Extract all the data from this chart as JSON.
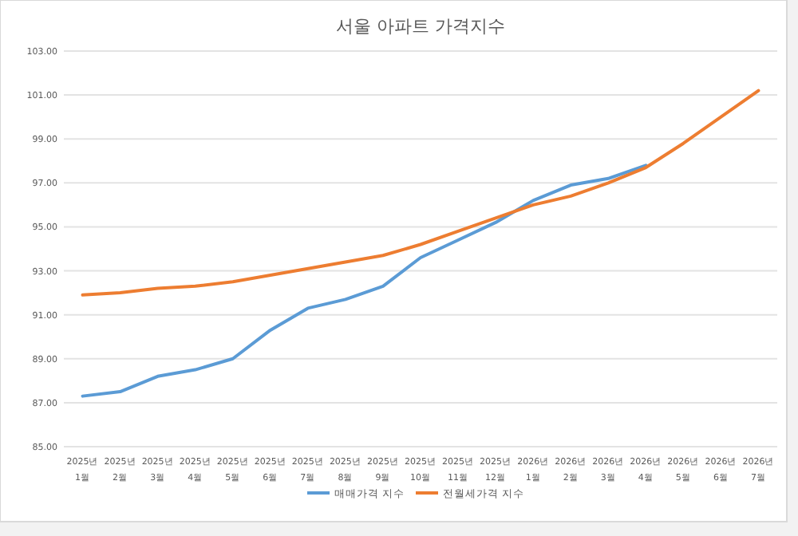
{
  "chart_data": {
    "type": "line",
    "title": "서울 아파트 가격지수",
    "categories": [
      "2025년\n1월",
      "2025년\n2월",
      "2025년\n3월",
      "2025년\n4월",
      "2025년\n5월",
      "2025년\n6월",
      "2025년\n7월",
      "2025년\n8월",
      "2025년\n9월",
      "2025년\n10월",
      "2025년\n11월",
      "2025년\n12월",
      "2026년\n1월",
      "2026년\n2월",
      "2026년\n3월",
      "2026년\n4월",
      "2026년\n5월",
      "2026년\n6월",
      "2026년\n7월"
    ],
    "series": [
      {
        "name": "매매가격 지수",
        "color": "#5b9bd5",
        "values": [
          87.3,
          87.5,
          88.2,
          88.5,
          89.0,
          90.3,
          91.3,
          91.7,
          92.3,
          93.6,
          94.4,
          95.2,
          96.2,
          96.9,
          97.2,
          97.8,
          null,
          null,
          null
        ]
      },
      {
        "name": "전월세가격 지수",
        "color": "#ed7d31",
        "values": [
          91.9,
          92.0,
          92.2,
          92.3,
          92.5,
          92.8,
          93.1,
          93.4,
          93.7,
          94.2,
          94.8,
          95.4,
          96.0,
          96.4,
          97.0,
          97.7,
          98.8,
          100.0,
          101.2
        ]
      }
    ],
    "ylim": [
      85,
      103
    ],
    "yticks": [
      {
        "value": 85,
        "label": "85.00"
      },
      {
        "value": 87,
        "label": "87.00"
      },
      {
        "value": 89,
        "label": "89.00"
      },
      {
        "value": 91,
        "label": "91.00"
      },
      {
        "value": 93,
        "label": "93.00"
      },
      {
        "value": 95,
        "label": "95.00"
      },
      {
        "value": 97,
        "label": "97.00"
      },
      {
        "value": 99,
        "label": "99.00"
      },
      {
        "value": 101,
        "label": "101.00"
      },
      {
        "value": 103,
        "label": "103.00"
      }
    ],
    "grid": "y",
    "legend": "bottom",
    "marker": "none",
    "line_style": "solid"
  }
}
